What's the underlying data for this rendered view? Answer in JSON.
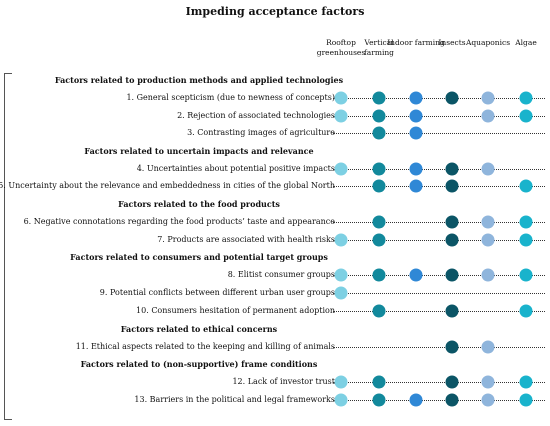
{
  "title": "Impeding acceptance factors",
  "columns": [
    {
      "label": "Rooftop greenhouses",
      "color": "#7dd0e3"
    },
    {
      "label": "Vertical farming",
      "color": "#12899c"
    },
    {
      "label": "Indoor farming",
      "color": "#2f88d6"
    },
    {
      "label": "Insects",
      "color": "#0b5566"
    },
    {
      "label": "Aquaponics",
      "color": "#8fb5dc"
    },
    {
      "label": "Algae",
      "color": "#19b3cc"
    }
  ],
  "rows": [
    {
      "type": "section",
      "label": "Factors related to production methods and applied technologies"
    },
    {
      "type": "item",
      "label": "1. General scepticism (due to newness of concepts)",
      "marks": [
        1,
        1,
        1,
        1,
        1,
        1
      ]
    },
    {
      "type": "item",
      "label": "2. Rejection of associated technologies",
      "marks": [
        1,
        1,
        1,
        0,
        1,
        1
      ]
    },
    {
      "type": "item",
      "label": "3. Contrasting images of agriculture",
      "marks": [
        0,
        1,
        1,
        0,
        0,
        0
      ]
    },
    {
      "type": "section",
      "label": "Factors related to uncertain impacts and relevance"
    },
    {
      "type": "item",
      "label": "4. Uncertainties about potential positive impacts",
      "marks": [
        1,
        1,
        1,
        1,
        1,
        0
      ]
    },
    {
      "type": "item",
      "label": "5. Uncertainty about the relevance and embeddedness in cities of the global North",
      "marks": [
        0,
        1,
        1,
        1,
        0,
        1
      ]
    },
    {
      "type": "section",
      "label": "Factors related to the food products"
    },
    {
      "type": "item",
      "label": "6. Negative connotations regarding the food products’ taste and appearance",
      "marks": [
        0,
        1,
        0,
        1,
        1,
        1
      ]
    },
    {
      "type": "item",
      "label": "7. Products are associated with health risks",
      "marks": [
        1,
        1,
        0,
        1,
        1,
        1
      ]
    },
    {
      "type": "section",
      "label": "Factors related to consumers and potential target groups"
    },
    {
      "type": "item",
      "label": "8. Elitist consumer groups",
      "marks": [
        1,
        1,
        1,
        1,
        1,
        1
      ]
    },
    {
      "type": "item",
      "label": "9. Potential conflicts between different urban user groups",
      "marks": [
        1,
        0,
        0,
        0,
        0,
        0
      ]
    },
    {
      "type": "item",
      "label": "10. Consumers hesitation of permanent adoption",
      "marks": [
        0,
        1,
        0,
        1,
        0,
        1
      ]
    },
    {
      "type": "section",
      "label": "Factors related to ethical concerns"
    },
    {
      "type": "item",
      "label": "11. Ethical aspects related to the keeping and killing of animals",
      "marks": [
        0,
        0,
        0,
        1,
        1,
        0
      ]
    },
    {
      "type": "section",
      "label": "Factors related to (non-supportive) frame conditions"
    },
    {
      "type": "item",
      "label": "12. Lack of investor trust",
      "marks": [
        1,
        1,
        0,
        1,
        1,
        1
      ]
    },
    {
      "type": "item",
      "label": "13. Barriers in the political and legal frameworks",
      "marks": [
        1,
        1,
        1,
        1,
        1,
        1
      ]
    }
  ]
}
